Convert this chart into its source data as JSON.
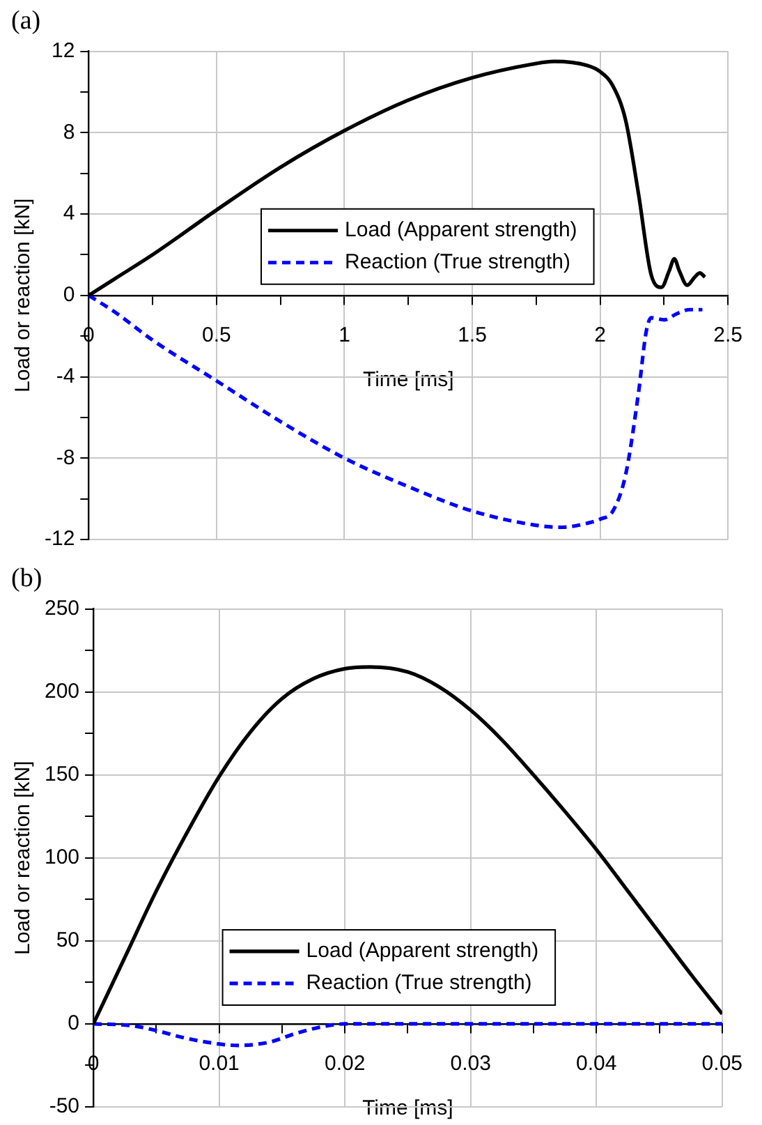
{
  "chart_data": [
    {
      "type": "line",
      "title": "(a)",
      "xlabel": "Time [ms]",
      "ylabel": "Load or reaction [kN]",
      "legend": "center",
      "grid": true,
      "marker": "none",
      "xlim": [
        0,
        2.5
      ],
      "ylim": [
        -12,
        12
      ],
      "xticks": [
        0,
        {
          "value": 0.25,
          "label": null
        },
        0.5,
        {
          "value": 0.75,
          "label": null
        },
        1,
        {
          "value": 1.25,
          "label": null
        },
        1.5,
        {
          "value": 1.75,
          "label": null
        },
        2,
        {
          "value": 2.25,
          "label": null
        },
        2.5
      ],
      "yticks": [
        -12,
        {
          "value": -10,
          "label": null
        },
        -8,
        {
          "value": -6,
          "label": null
        },
        -4,
        {
          "value": -2,
          "label": null
        },
        0,
        {
          "value": 2,
          "label": null
        },
        4,
        {
          "value": 6,
          "label": null
        },
        8,
        {
          "value": 10,
          "label": null
        },
        12
      ],
      "series": [
        {
          "name": "Load (Apparent strength)",
          "color": "#000000",
          "line_style": "solid",
          "x": [
            0,
            0.1,
            0.25,
            0.5,
            0.75,
            1,
            1.25,
            1.5,
            1.75,
            1.82,
            1.95,
            2.0,
            2.05,
            2.1,
            2.15,
            2.2,
            2.24,
            2.27,
            2.29,
            2.31,
            2.34,
            2.37,
            2.39,
            2.41
          ],
          "values": [
            0,
            0.8,
            2.0,
            4.2,
            6.3,
            8.1,
            9.6,
            10.7,
            11.4,
            11.5,
            11.3,
            11.0,
            10.3,
            8.6,
            5.0,
            1.0,
            0.4,
            1.2,
            1.8,
            1.2,
            0.5,
            0.9,
            1.1,
            0.9
          ]
        },
        {
          "name": "Reaction (True strength)",
          "color": "#0000ff",
          "line_style": "dashed",
          "x": [
            0,
            0.1,
            0.25,
            0.5,
            0.75,
            1,
            1.25,
            1.5,
            1.75,
            1.85,
            1.95,
            2.0,
            2.05,
            2.1,
            2.15,
            2.18,
            2.2,
            2.25,
            2.3,
            2.35,
            2.4
          ],
          "values": [
            0,
            -0.8,
            -2.2,
            -4.2,
            -6.2,
            -8.0,
            -9.4,
            -10.6,
            -11.3,
            -11.4,
            -11.2,
            -11.0,
            -10.6,
            -8.8,
            -4.8,
            -1.8,
            -1.1,
            -1.2,
            -0.9,
            -0.7,
            -0.7
          ]
        }
      ]
    },
    {
      "type": "line",
      "title": "(b)",
      "xlabel": "Time [ms]",
      "ylabel": "Load or reaction [kN]",
      "legend": "bottom",
      "grid": true,
      "marker": "none",
      "xlim": [
        0,
        0.05
      ],
      "ylim": [
        -50,
        250
      ],
      "xticks": [
        0,
        {
          "value": 0.005,
          "label": null
        },
        0.01,
        {
          "value": 0.015,
          "label": null
        },
        0.02,
        {
          "value": 0.025,
          "label": null
        },
        0.03,
        {
          "value": 0.035,
          "label": null
        },
        0.04,
        {
          "value": 0.045,
          "label": null
        },
        0.05
      ],
      "yticks": [
        -50,
        {
          "value": -25,
          "label": null
        },
        0,
        {
          "value": 25,
          "label": null
        },
        50,
        {
          "value": 75,
          "label": null
        },
        100,
        {
          "value": 125,
          "label": null
        },
        150,
        {
          "value": 175,
          "label": null
        },
        200,
        {
          "value": 225,
          "label": null
        },
        250
      ],
      "series": [
        {
          "name": "Load (Apparent strength)",
          "color": "#000000",
          "line_style": "solid",
          "x": [
            0,
            0.0025,
            0.005,
            0.0075,
            0.01,
            0.0125,
            0.015,
            0.0175,
            0.02,
            0.022,
            0.025,
            0.0275,
            0.03,
            0.0325,
            0.035,
            0.0375,
            0.04,
            0.0425,
            0.045,
            0.0475,
            0.05
          ],
          "values": [
            0,
            40,
            80,
            116,
            149,
            176,
            196,
            208,
            214,
            215,
            212,
            203,
            189,
            171,
            150,
            128,
            105,
            80,
            55,
            30,
            6
          ]
        },
        {
          "name": "Reaction (True strength)",
          "color": "#0000ff",
          "line_style": "dashed",
          "x": [
            0,
            0.003,
            0.005,
            0.007,
            0.009,
            0.0115,
            0.014,
            0.016,
            0.018,
            0.02,
            0.03,
            0.04,
            0.05
          ],
          "values": [
            0,
            -1,
            -4,
            -8,
            -11,
            -13,
            -11,
            -6,
            -2,
            0,
            0,
            0,
            0
          ]
        }
      ]
    }
  ]
}
